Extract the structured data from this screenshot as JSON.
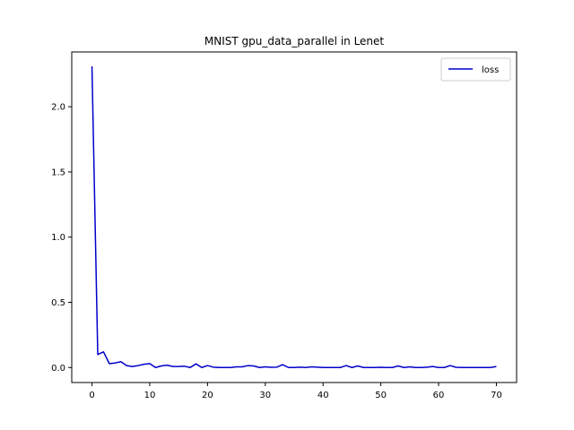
{
  "chart_data": {
    "type": "line",
    "title": "MNIST gpu_data_parallel in Lenet",
    "xlabel": "",
    "ylabel": "",
    "xlim": [
      -3.5,
      73.5
    ],
    "ylim": [
      -0.115,
      2.42
    ],
    "xticks": [
      0,
      10,
      20,
      30,
      40,
      50,
      60,
      70
    ],
    "xtick_labels": [
      "0",
      "10",
      "20",
      "30",
      "40",
      "50",
      "60",
      "70"
    ],
    "yticks": [
      0.0,
      0.5,
      1.0,
      1.5,
      2.0
    ],
    "ytick_labels": [
      "0.0",
      "0.5",
      "1.0",
      "1.5",
      "2.0"
    ],
    "grid": false,
    "legend_position": "top-right",
    "series": [
      {
        "name": "loss",
        "color": "#0000cc",
        "x": [
          0,
          1,
          2,
          3,
          4,
          5,
          6,
          7,
          8,
          9,
          10,
          11,
          12,
          13,
          14,
          15,
          16,
          17,
          18,
          19,
          20,
          21,
          22,
          23,
          24,
          25,
          26,
          27,
          28,
          29,
          30,
          31,
          32,
          33,
          34,
          35,
          36,
          37,
          38,
          39,
          40,
          41,
          42,
          43,
          44,
          45,
          46,
          47,
          48,
          49,
          50,
          51,
          52,
          53,
          54,
          55,
          56,
          57,
          58,
          59,
          60,
          61,
          62,
          63,
          64,
          65,
          66,
          67,
          68,
          69,
          70
        ],
        "values": [
          2.31,
          0.1,
          0.12,
          0.03,
          0.035,
          0.045,
          0.015,
          0.008,
          0.015,
          0.025,
          0.03,
          0.0,
          0.012,
          0.018,
          0.008,
          0.008,
          0.01,
          0.0,
          0.028,
          0.0,
          0.015,
          0.003,
          0.0,
          0.0,
          0.0,
          0.005,
          0.005,
          0.015,
          0.012,
          0.0,
          0.005,
          0.002,
          0.003,
          0.022,
          0.0,
          0.0,
          0.003,
          0.0,
          0.005,
          0.003,
          0.0,
          0.0,
          0.0,
          0.0,
          0.015,
          0.0,
          0.012,
          0.0,
          0.0,
          0.0,
          0.002,
          0.0,
          0.0,
          0.012,
          0.0,
          0.005,
          0.0,
          0.0,
          0.003,
          0.008,
          0.0,
          0.0,
          0.015,
          0.002,
          0.0,
          0.0,
          0.0,
          0.0,
          0.0,
          0.0,
          0.008
        ]
      }
    ]
  }
}
